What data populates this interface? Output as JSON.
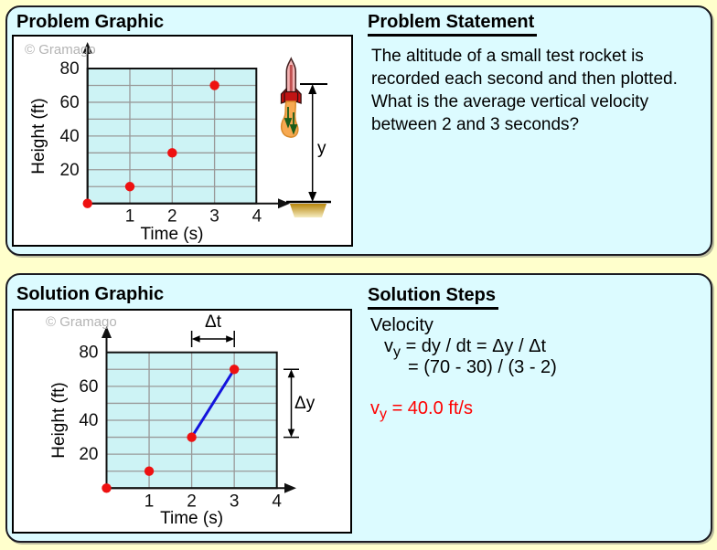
{
  "app": {
    "background_color": "#ffffcc",
    "panel_color": "#dcfbff"
  },
  "problem_panel": {
    "title": "Problem Graphic",
    "watermark": "© Gramago",
    "statement": {
      "title": "Problem Statement",
      "lines": [
        "The altitude of a small test rocket is",
        "recorded each second and then plotted.",
        "What is the average vertical velocity",
        "between 2 and 3 seconds?"
      ]
    },
    "rocket": {
      "height_label": "y"
    }
  },
  "solution_panel": {
    "title": "Solution Graphic",
    "watermark": "© Gramago",
    "annotations": {
      "delta_t": "Δt",
      "delta_y": "Δy"
    },
    "steps": {
      "title": "Solution Steps",
      "heading": "Velocity",
      "formula_var": "v",
      "formula_sub": "y",
      "formula_rhs1": "= dy / dt = Δy / Δt",
      "formula_rhs2": "= (70 - 30) / (3 - 2)",
      "result_var": "v",
      "result_sub": "y",
      "result_rhs": "= 40.0 ft/s",
      "result_color": "#ff0000"
    }
  },
  "chart_data": [
    {
      "id": "problem-chart",
      "type": "scatter",
      "title": "Problem Graphic",
      "x": [
        0,
        1,
        2,
        3
      ],
      "y": [
        0,
        10,
        30,
        70
      ],
      "xlabel": "Time (s)",
      "ylabel": "Height (ft)",
      "xlim": [
        0,
        4
      ],
      "ylim": [
        0,
        80
      ],
      "xticks": [
        1,
        2,
        3,
        4
      ],
      "yticks": [
        20,
        40,
        60,
        80
      ],
      "grid": true,
      "grid_color": "#999999",
      "plot_fill": "#cdf3f5",
      "point_color": "#ee1111"
    },
    {
      "id": "solution-chart",
      "type": "scatter",
      "title": "Solution Graphic",
      "x": [
        0,
        1,
        2,
        3
      ],
      "y": [
        0,
        10,
        30,
        70
      ],
      "segment": {
        "from": [
          2,
          30
        ],
        "to": [
          3,
          70
        ],
        "color": "#1414dd"
      },
      "xlabel": "Time (s)",
      "ylabel": "Height (ft)",
      "xlim": [
        0,
        4
      ],
      "ylim": [
        0,
        80
      ],
      "xticks": [
        1,
        2,
        3,
        4
      ],
      "yticks": [
        20,
        40,
        60,
        80
      ],
      "grid": true,
      "grid_color": "#999999",
      "plot_fill": "#cdf3f5",
      "point_color": "#ee1111",
      "annotations": {
        "delta_t": "Δt",
        "delta_y": "Δy"
      }
    }
  ]
}
